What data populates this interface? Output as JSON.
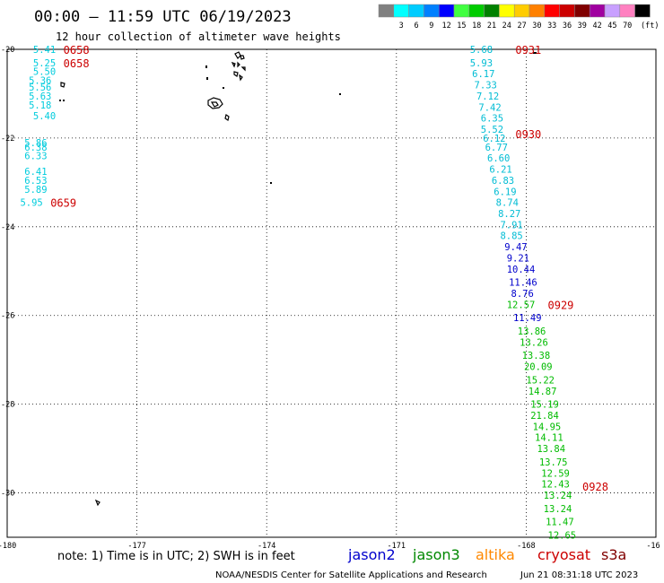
{
  "header": {
    "title": "00:00 – 11:59 UTC 06/19/2023",
    "subtitle": "12 hour collection of altimeter wave heights"
  },
  "legend": {
    "unit": "(ft)",
    "bins": [
      {
        "label": "",
        "color": "#808080"
      },
      {
        "label": "3",
        "color": "#00ffff"
      },
      {
        "label": "6",
        "color": "#00ccff"
      },
      {
        "label": "9",
        "color": "#0080ff"
      },
      {
        "label": "12",
        "color": "#0000ff"
      },
      {
        "label": "15",
        "color": "#40ff40"
      },
      {
        "label": "18",
        "color": "#00cc00"
      },
      {
        "label": "21",
        "color": "#008000"
      },
      {
        "label": "24",
        "color": "#ffff00"
      },
      {
        "label": "27",
        "color": "#ffcc00"
      },
      {
        "label": "30",
        "color": "#ff8000"
      },
      {
        "label": "33",
        "color": "#ff0000"
      },
      {
        "label": "36",
        "color": "#cc0000"
      },
      {
        "label": "39",
        "color": "#800000"
      },
      {
        "label": "42",
        "color": "#a000a0"
      },
      {
        "label": "45",
        "color": "#c8a0ff"
      },
      {
        "label": "70",
        "color": "#ff80c0"
      },
      {
        "label": "",
        "color": "#000000"
      }
    ]
  },
  "axes": {
    "x_ticks": [
      "-180",
      "-177",
      "-174",
      "-171",
      "-168",
      "-16"
    ],
    "y_ticks": [
      "-20",
      "-22",
      "-24",
      "-26",
      "-28",
      "-30"
    ]
  },
  "tracks": [
    {
      "satellite": "cryosat",
      "color": "#00ccdd",
      "points": [
        {
          "lon": -179.4,
          "lat": -20.0,
          "v": "5.41"
        },
        {
          "lon": -179.4,
          "lat": -20.3,
          "v": "5.25"
        },
        {
          "lon": -179.4,
          "lat": -20.5,
          "v": "5.50"
        },
        {
          "lon": -179.5,
          "lat": -20.7,
          "v": "5.36"
        },
        {
          "lon": -179.5,
          "lat": -20.85,
          "v": "5.56"
        },
        {
          "lon": -179.5,
          "lat": -21.05,
          "v": "5.63"
        },
        {
          "lon": -179.5,
          "lat": -21.25,
          "v": "5.18"
        },
        {
          "lon": -179.4,
          "lat": -21.5,
          "v": "5.40"
        },
        {
          "lon": -179.6,
          "lat": -22.1,
          "v": "5.86"
        },
        {
          "lon": -179.6,
          "lat": -22.2,
          "v": "6.38"
        },
        {
          "lon": -179.6,
          "lat": -22.4,
          "v": "6.33"
        },
        {
          "lon": -179.6,
          "lat": -22.75,
          "v": "6.41"
        },
        {
          "lon": -179.6,
          "lat": -22.95,
          "v": "6.53"
        },
        {
          "lon": -179.6,
          "lat": -23.15,
          "v": "5.89"
        },
        {
          "lon": -179.7,
          "lat": -23.45,
          "v": "5.95"
        }
      ],
      "times": [
        {
          "lon": -178.7,
          "lat": -20.0,
          "t": "0658"
        },
        {
          "lon": -178.7,
          "lat": -20.3,
          "t": "0658"
        },
        {
          "lon": -179.0,
          "lat": -23.45,
          "t": "0659"
        }
      ]
    },
    {
      "satellite": "cryosat",
      "color": "#00bcd4",
      "points": [
        {
          "lon": -169.3,
          "lat": -20.0,
          "v": "5.68"
        },
        {
          "lon": -169.3,
          "lat": -20.3,
          "v": "5.93"
        },
        {
          "lon": -169.25,
          "lat": -20.55,
          "v": "6.17"
        },
        {
          "lon": -169.2,
          "lat": -20.8,
          "v": "7.33"
        },
        {
          "lon": -169.15,
          "lat": -21.05,
          "v": "7.12"
        },
        {
          "lon": -169.1,
          "lat": -21.3,
          "v": "7.42"
        },
        {
          "lon": -169.05,
          "lat": -21.55,
          "v": "6.35"
        },
        {
          "lon": -169.05,
          "lat": -21.8,
          "v": "5.52"
        },
        {
          "lon": -169.0,
          "lat": -22.0,
          "v": "6.12"
        },
        {
          "lon": -168.95,
          "lat": -22.2,
          "v": "6.77"
        },
        {
          "lon": -168.9,
          "lat": -22.45,
          "v": "6.60"
        },
        {
          "lon": -168.85,
          "lat": -22.7,
          "v": "6.21"
        },
        {
          "lon": -168.8,
          "lat": -22.95,
          "v": "6.83"
        },
        {
          "lon": -168.75,
          "lat": -23.2,
          "v": "6.19"
        },
        {
          "lon": -168.7,
          "lat": -23.45,
          "v": "8.74"
        },
        {
          "lon": -168.65,
          "lat": -23.7,
          "v": "8.27"
        },
        {
          "lon": -168.6,
          "lat": -23.95,
          "v": "7.91"
        },
        {
          "lon": -168.6,
          "lat": -24.2,
          "v": "8.85"
        }
      ],
      "times": [
        {
          "lon": -168.25,
          "lat": -20.0,
          "t": "0931"
        },
        {
          "lon": -168.25,
          "lat": -21.9,
          "t": "0930"
        }
      ]
    },
    {
      "satellite": "cryosat",
      "color": "#0000cc",
      "points": [
        {
          "lon": -168.5,
          "lat": -24.45,
          "v": "9.47"
        },
        {
          "lon": -168.45,
          "lat": -24.7,
          "v": "9.21"
        },
        {
          "lon": -168.45,
          "lat": -24.95,
          "v": "10.44"
        },
        {
          "lon": -168.4,
          "lat": -25.25,
          "v": "11.46"
        },
        {
          "lon": -168.35,
          "lat": -25.5,
          "v": "8.76"
        },
        {
          "lon": -168.3,
          "lat": -26.05,
          "v": "11.49"
        }
      ],
      "times": [
        {
          "lon": -167.5,
          "lat": -25.75,
          "t": "0929"
        }
      ]
    },
    {
      "satellite": "cryosat",
      "color": "#00bb00",
      "points": [
        {
          "lon": -168.45,
          "lat": -25.75,
          "v": "12.57"
        },
        {
          "lon": -168.2,
          "lat": -26.35,
          "v": "13.86"
        },
        {
          "lon": -168.15,
          "lat": -26.6,
          "v": "13.26"
        },
        {
          "lon": -168.1,
          "lat": -26.9,
          "v": "13.38"
        },
        {
          "lon": -168.05,
          "lat": -27.15,
          "v": "20.09"
        },
        {
          "lon": -168.0,
          "lat": -27.45,
          "v": "15.22"
        },
        {
          "lon": -167.95,
          "lat": -27.7,
          "v": "14.87"
        },
        {
          "lon": -167.9,
          "lat": -28.0,
          "v": "15.19"
        },
        {
          "lon": -167.9,
          "lat": -28.25,
          "v": "21.84"
        },
        {
          "lon": -167.85,
          "lat": -28.5,
          "v": "14.95"
        },
        {
          "lon": -167.8,
          "lat": -28.75,
          "v": "14.11"
        },
        {
          "lon": -167.75,
          "lat": -29.0,
          "v": "13.84"
        },
        {
          "lon": -167.7,
          "lat": -29.3,
          "v": "13.75"
        },
        {
          "lon": -167.65,
          "lat": -29.55,
          "v": "12.59"
        },
        {
          "lon": -167.65,
          "lat": -29.8,
          "v": "12.43"
        },
        {
          "lon": -167.6,
          "lat": -30.05,
          "v": "13.24"
        },
        {
          "lon": -167.6,
          "lat": -30.35,
          "v": "13.24"
        },
        {
          "lon": -167.55,
          "lat": -30.65,
          "v": "11.47"
        },
        {
          "lon": -167.5,
          "lat": -30.95,
          "v": "12.65"
        }
      ],
      "times": [
        {
          "lon": -166.7,
          "lat": -29.85,
          "t": "0928"
        }
      ]
    }
  ],
  "satellites": [
    {
      "name": "jason2",
      "color": "#0000cc"
    },
    {
      "name": "jason3",
      "color": "#008800"
    },
    {
      "name": "altika",
      "color": "#ff8800"
    },
    {
      "name": "cryosat",
      "color": "#cc0000"
    },
    {
      "name": "s3a",
      "color": "#800000"
    }
  ],
  "footer": {
    "note": "note:  1) Time is in UTC;  2) SWH is in feet",
    "credit": "NOAA/NESDIS Center for Satellite Applications and Research",
    "timestamp": "Jun 21 08:31:18 UTC 2023"
  }
}
